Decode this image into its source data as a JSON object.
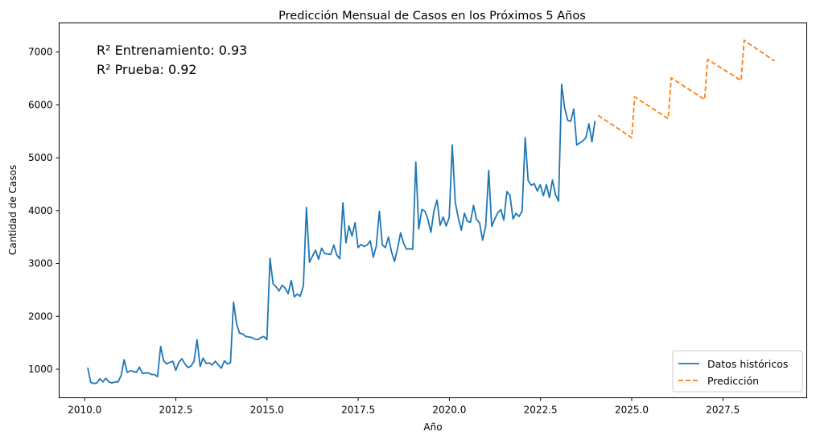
{
  "chart_data": {
    "type": "line",
    "title": "Predicción Mensual de Casos en los Próximos 5 Años",
    "xlabel": "Año",
    "ylabel": "Cantidad de Casos",
    "xlim": [
      2009.3,
      2029.8
    ],
    "ylim": [
      460,
      7550
    ],
    "x_ticks": [
      2010.0,
      2012.5,
      2015.0,
      2017.5,
      2020.0,
      2022.5,
      2025.0,
      2027.5
    ],
    "x_tick_labels": [
      "2010.0",
      "2012.5",
      "2015.0",
      "2017.5",
      "2020.0",
      "2022.5",
      "2025.0",
      "2027.5"
    ],
    "y_ticks": [
      1000,
      2000,
      3000,
      4000,
      5000,
      6000,
      7000
    ],
    "y_tick_labels": [
      "1000",
      "2000",
      "3000",
      "4000",
      "5000",
      "6000",
      "7000"
    ],
    "grid": false,
    "legend_position": "bottom-right",
    "annotations": [
      "R² Entrenamiento: 0.93",
      "R² Prueba: 0.92"
    ],
    "series": [
      {
        "name": "Datos históricos",
        "color": "#1f77b4",
        "style": "solid",
        "start_year": 2010.083,
        "step": 0.0833,
        "values": [
          1030,
          750,
          730,
          740,
          820,
          760,
          830,
          760,
          740,
          760,
          760,
          880,
          1180,
          940,
          970,
          960,
          940,
          1040,
          920,
          930,
          930,
          900,
          900,
          860,
          1430,
          1160,
          1100,
          1130,
          1150,
          980,
          1130,
          1200,
          1100,
          1030,
          1060,
          1150,
          1560,
          1050,
          1210,
          1110,
          1120,
          1080,
          1150,
          1080,
          1020,
          1160,
          1100,
          1120,
          2270,
          1860,
          1680,
          1670,
          1620,
          1610,
          1600,
          1570,
          1560,
          1600,
          1620,
          1560,
          3100,
          2620,
          2560,
          2480,
          2590,
          2530,
          2430,
          2680,
          2370,
          2420,
          2380,
          2580,
          4060,
          3020,
          3140,
          3250,
          3080,
          3290,
          3190,
          3180,
          3170,
          3350,
          3160,
          3090,
          4150,
          3390,
          3710,
          3520,
          3770,
          3300,
          3360,
          3320,
          3350,
          3430,
          3120,
          3330,
          3990,
          3350,
          3300,
          3500,
          3220,
          3040,
          3280,
          3580,
          3380,
          3270,
          3280,
          3270,
          4920,
          3650,
          4020,
          3990,
          3830,
          3590,
          4000,
          4200,
          3720,
          3880,
          3710,
          3870,
          5240,
          4160,
          3860,
          3630,
          3950,
          3800,
          3780,
          4100,
          3830,
          3770,
          3440,
          3700,
          4760,
          3700,
          3840,
          3960,
          4020,
          3820,
          4360,
          4290,
          3840,
          3950,
          3890,
          3990,
          5380,
          4570,
          4480,
          4510,
          4370,
          4490,
          4280,
          4490,
          4250,
          4580,
          4300,
          4180,
          6390,
          5950,
          5710,
          5690,
          5920,
          5240,
          5280,
          5320,
          5380,
          5640,
          5300,
          5700
        ]
      },
      {
        "name": "Predicción",
        "color": "#ff7f0e",
        "style": "dashed",
        "segments": [
          [
            [
              2024.083,
              5800
            ],
            [
              2025.0,
              5380
            ]
          ],
          [
            [
              2025.0,
              5380
            ],
            [
              2025.083,
              6150
            ]
          ],
          [
            [
              2025.083,
              6150
            ],
            [
              2026.0,
              5740
            ]
          ],
          [
            [
              2026.0,
              5740
            ],
            [
              2026.083,
              6510
            ]
          ],
          [
            [
              2026.083,
              6510
            ],
            [
              2027.0,
              6100
            ]
          ],
          [
            [
              2027.0,
              6100
            ],
            [
              2027.083,
              6860
            ]
          ],
          [
            [
              2027.083,
              6860
            ],
            [
              2028.0,
              6460
            ]
          ],
          [
            [
              2028.0,
              6460
            ],
            [
              2028.083,
              7220
            ]
          ],
          [
            [
              2028.083,
              7220
            ],
            [
              2028.917,
              6830
            ]
          ]
        ]
      }
    ]
  }
}
